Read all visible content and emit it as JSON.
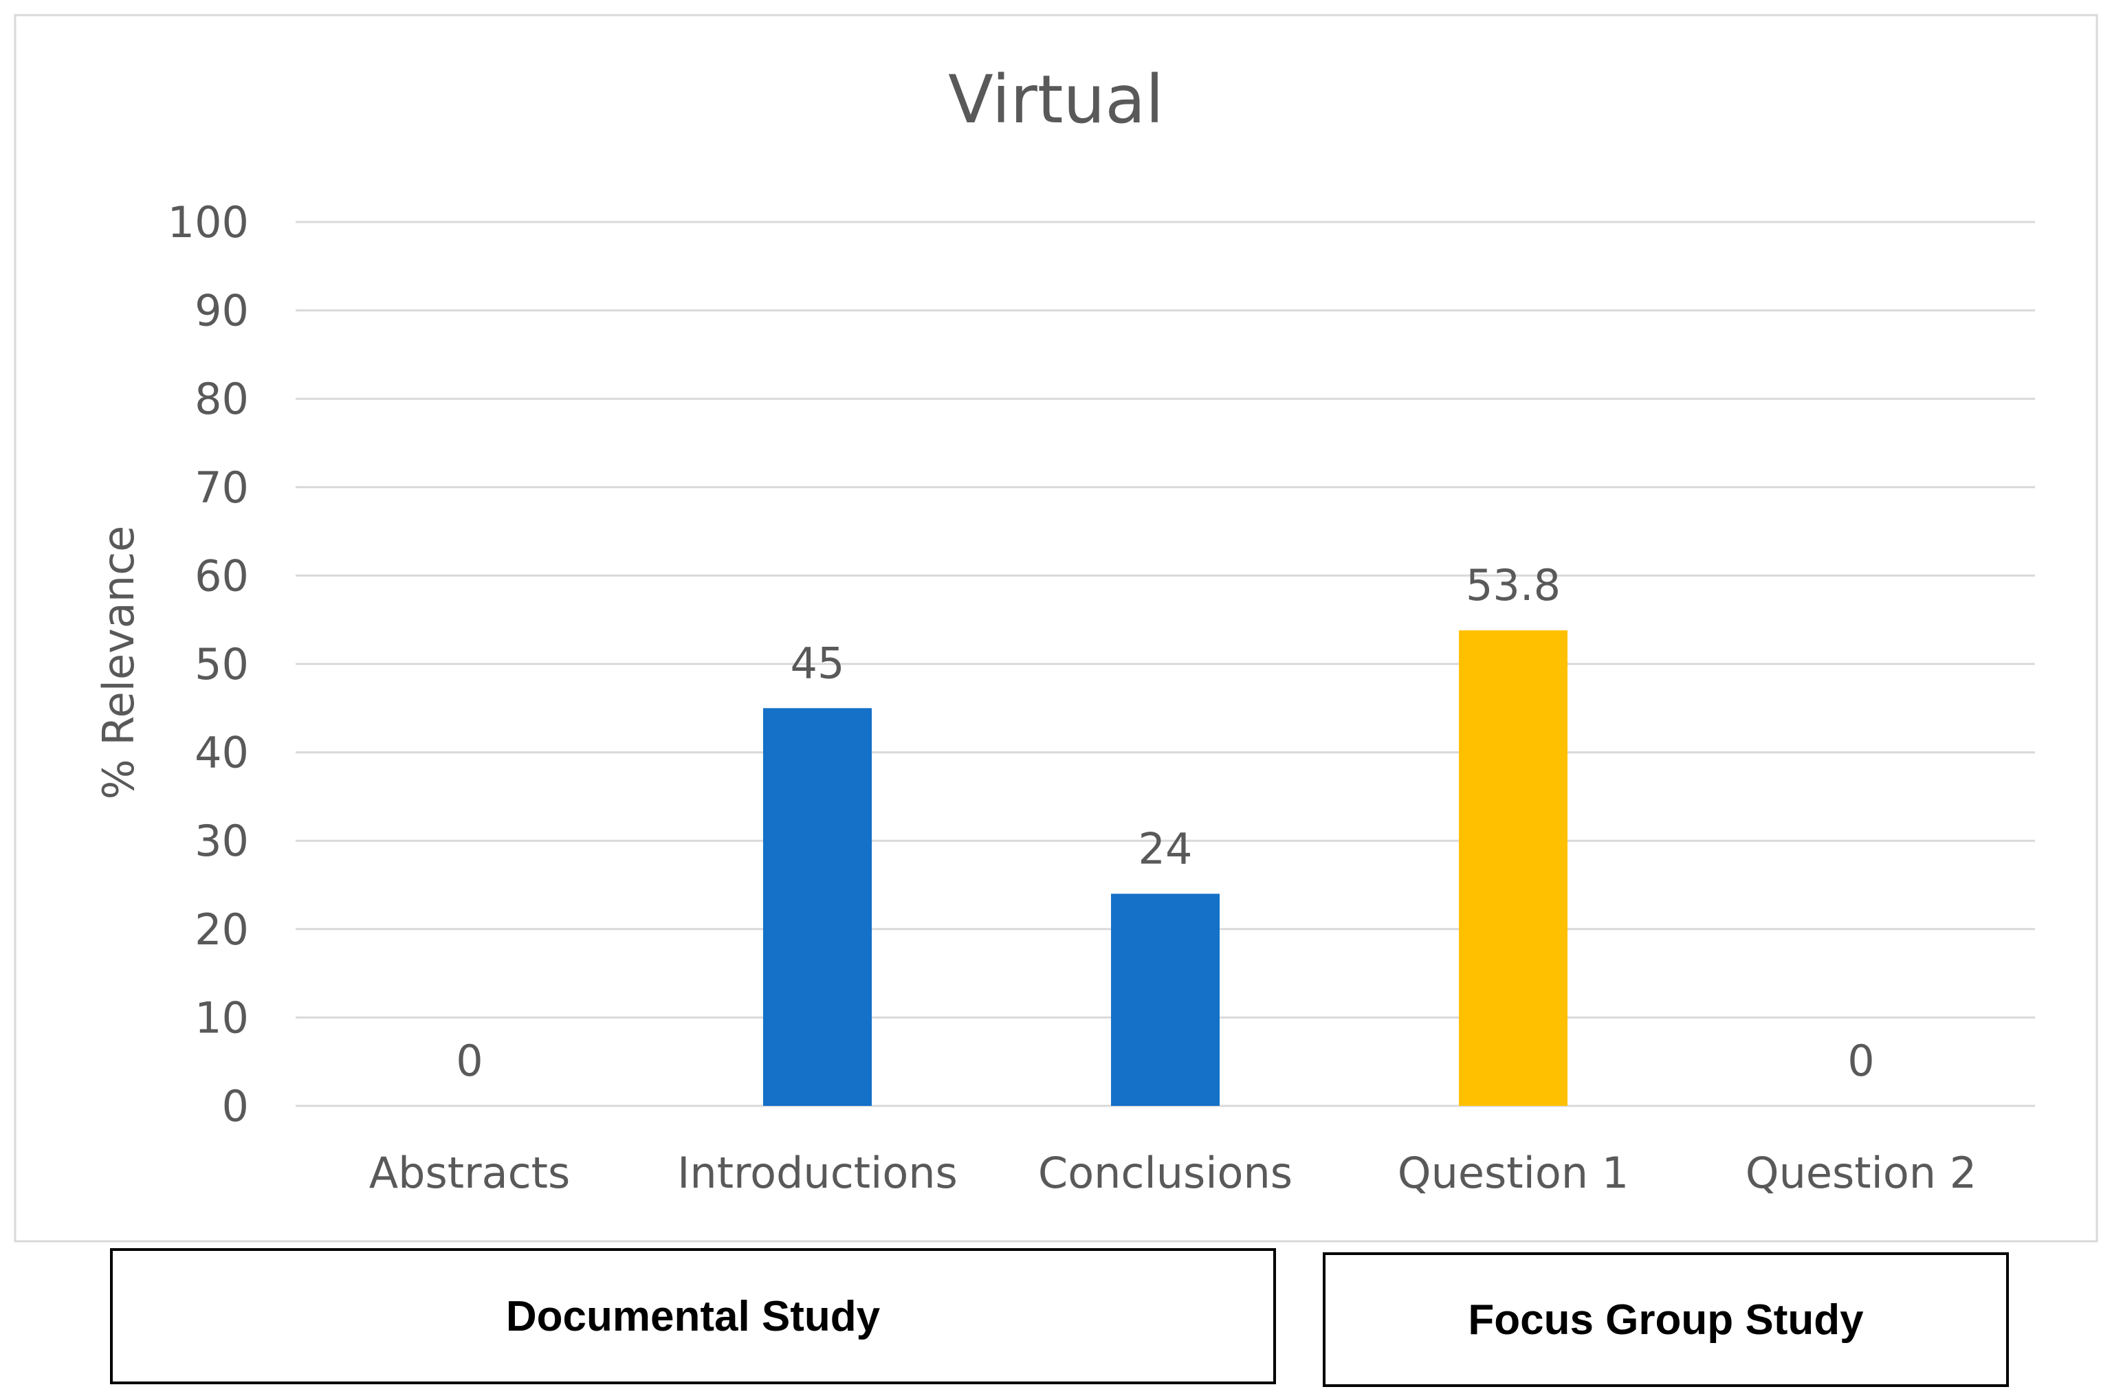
{
  "chart_data": {
    "type": "bar",
    "title": "Virtual",
    "xlabel": "",
    "ylabel": "% Relevance",
    "ylim": [
      0,
      100
    ],
    "yticks": [
      0,
      10,
      20,
      30,
      40,
      50,
      60,
      70,
      80,
      90,
      100
    ],
    "grid": true,
    "categories": [
      "Abstracts",
      "Introductions",
      "Conclusions",
      "Question 1",
      "Question 2"
    ],
    "values": [
      0,
      45,
      24,
      53.8,
      0
    ],
    "data_labels": [
      "0",
      "45",
      "24",
      "53.8",
      "0"
    ],
    "bar_colors": [
      "#1570C8",
      "#1570C8",
      "#1570C8",
      "#FFC000",
      "#FFC000"
    ]
  },
  "groups": {
    "documental_label": "Documental Study",
    "focus_label": "Focus Group Study"
  },
  "colors": {
    "documental": "#1570C8",
    "focus_group": "#FFC000",
    "gridline": "#D9D9D9",
    "text": "#595959",
    "border": "#D9D9D9"
  }
}
